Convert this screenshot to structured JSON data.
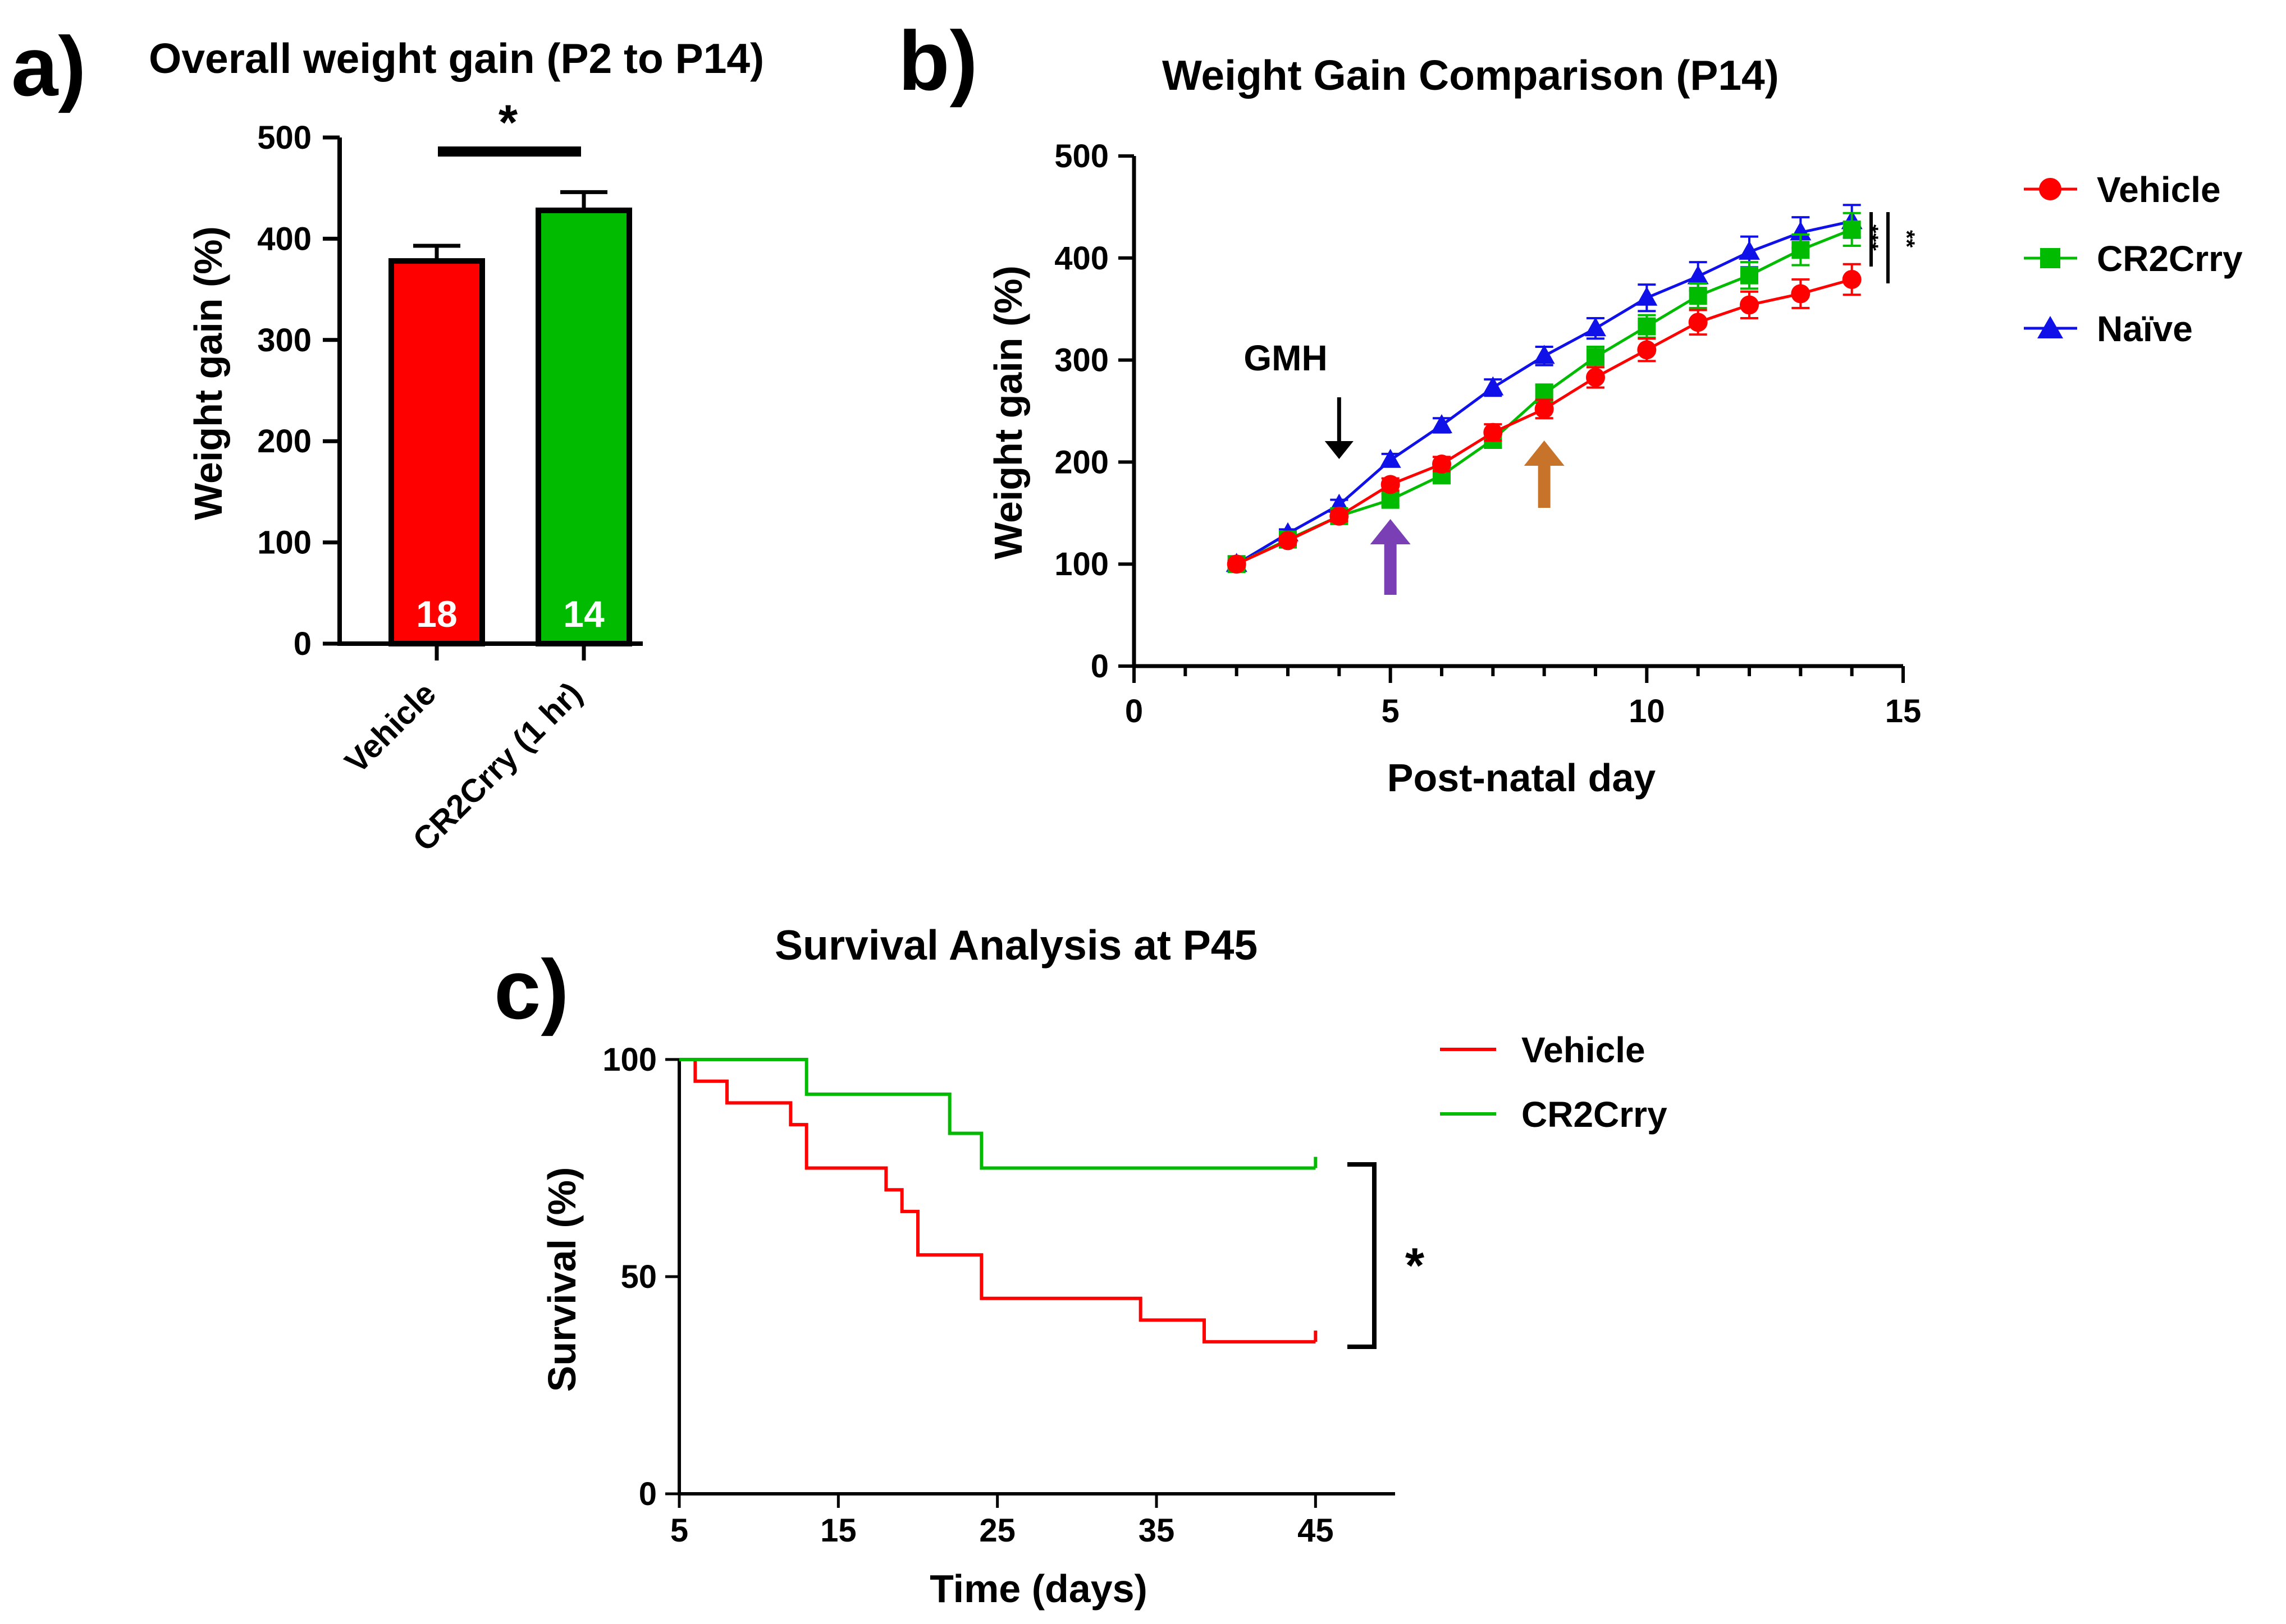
{
  "colors": {
    "vehicle": "#ff0000",
    "cr2crry": "#00bb00",
    "naive": "#1010e8",
    "arrow_gmh": "#000000",
    "arrow_purple": "#7b3fb5",
    "arrow_orange": "#c8732a"
  },
  "panels": {
    "a": "a)",
    "b": "b)",
    "c": "c)"
  },
  "chart_data": [
    {
      "id": "a",
      "type": "bar",
      "title": "Overall weight gain (P2 to P14)",
      "xlabel": "",
      "ylabel": "Weight gain (%)",
      "ylim": [
        0,
        500
      ],
      "yticks": [
        0,
        100,
        200,
        300,
        400,
        500
      ],
      "categories": [
        "Vehicle",
        "CR2Crry (1 hr)"
      ],
      "values": [
        378,
        428
      ],
      "errors": [
        15,
        18
      ],
      "n_labels": [
        "18",
        "14"
      ],
      "significance": "*"
    },
    {
      "id": "b",
      "type": "line",
      "title": "Weight Gain Comparison (P14)",
      "xlabel": "Post-natal day",
      "ylabel": "Weight gain  (%)",
      "xlim": [
        0,
        15
      ],
      "ylim": [
        0,
        500
      ],
      "xticks": [
        0,
        5,
        10,
        15
      ],
      "yticks": [
        0,
        100,
        200,
        300,
        400,
        500
      ],
      "x": [
        2,
        3,
        4,
        5,
        6,
        7,
        8,
        9,
        10,
        11,
        12,
        13,
        14
      ],
      "series": [
        {
          "name": "Vehicle",
          "marker": "circle",
          "values": [
            100,
            123,
            147,
            178,
            198,
            229,
            252,
            283,
            310,
            337,
            354,
            365,
            379
          ],
          "errors": [
            3,
            4,
            5,
            6,
            7,
            8,
            9,
            10,
            11,
            12,
            13,
            14,
            15
          ]
        },
        {
          "name": "CR2Crry",
          "marker": "square",
          "values": [
            100,
            124,
            147,
            163,
            187,
            222,
            267,
            303,
            333,
            363,
            383,
            408,
            428
          ],
          "errors": [
            3,
            4,
            5,
            6,
            7,
            8,
            9,
            10,
            11,
            12,
            13,
            15,
            16
          ]
        },
        {
          "name": "Naïve",
          "marker": "triangle",
          "values": [
            100,
            130,
            158,
            202,
            236,
            273,
            304,
            331,
            361,
            382,
            406,
            425,
            436
          ],
          "errors": [
            3,
            4,
            5,
            6,
            7,
            8,
            9,
            10,
            13,
            14,
            15,
            15,
            16
          ]
        }
      ],
      "annotations": [
        {
          "text": "GMH",
          "x": 4
        }
      ],
      "arrow_days": {
        "gmh": 4,
        "purple": 5,
        "orange": 8
      },
      "significance": [
        "***",
        "**"
      ]
    },
    {
      "id": "c",
      "type": "line",
      "subtype": "step",
      "title": "Survival Analysis at P45",
      "xlabel": "Time (days)",
      "ylabel": "Survival  (%)",
      "xlim": [
        5,
        50
      ],
      "ylim": [
        0,
        100
      ],
      "xticks": [
        5,
        15,
        25,
        35,
        45
      ],
      "yticks": [
        0,
        50,
        100
      ],
      "series": [
        {
          "name": "Vehicle",
          "x": [
            5,
            6,
            8,
            12,
            13,
            18,
            19,
            20,
            24,
            34,
            38,
            45
          ],
          "y": [
            100,
            95,
            90,
            85,
            75,
            70,
            65,
            55,
            45,
            40,
            35,
            35
          ]
        },
        {
          "name": "CR2Crry",
          "x": [
            5,
            13,
            22,
            24,
            45
          ],
          "y": [
            100,
            92,
            83,
            75,
            75
          ]
        }
      ],
      "significance": "*"
    }
  ]
}
